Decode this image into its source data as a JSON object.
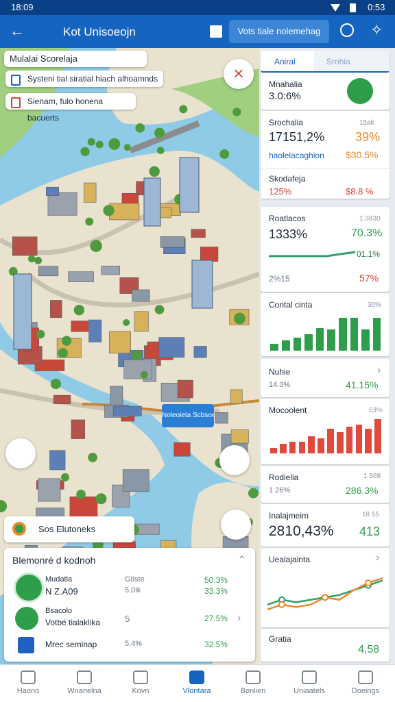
{
  "status": {
    "time": "18:09",
    "battery_time": "0:53"
  },
  "app_bar": {
    "title": "Kot Unisoeojn",
    "action": "Vots tiale nolemehag"
  },
  "map": {
    "legend_title": "Mulalai Scorelaja",
    "legend_items": [
      "Systeni tial siratial hiach alhoamnds",
      "Sienam, fulo honena bacuerts"
    ],
    "place_label": "Noleoieta Scbsoese",
    "search_chip": "Sos Elutoneks"
  },
  "summary": {
    "title": "Blemonré d kodnoh",
    "rows": [
      {
        "name": "Mudatia",
        "sub": "N Z.A09",
        "mid": "Gtiste",
        "mid_sub": "5.0ik",
        "value": "50.3%",
        "value_sub": "33.3%"
      },
      {
        "name": "Bsacolo",
        "sub": "Votbé tialaklika",
        "mid": "5",
        "value": "27.5%"
      },
      {
        "name": "Mrec seminap",
        "mid": "5.4%",
        "value": "32.5%"
      }
    ]
  },
  "panel": {
    "tabs": [
      "Aniral",
      "Srohia"
    ],
    "cards": [
      {
        "title": "Mnahalia",
        "value": "3.0:6%"
      },
      {
        "title": "Srochalia",
        "badge": "15ak",
        "value": "17151,2%",
        "change": "39%",
        "sub": "haolelacaghion",
        "sub_value": "$30.5%"
      },
      {
        "title": "Skodafeja",
        "value": "125%",
        "change": "$8.8 %"
      },
      {
        "title": "Roatlacos",
        "badge": "1 3830",
        "value": "1333%",
        "change": "70.3%",
        "line_end": "01.1%",
        "sub": "2%15",
        "sub_value": "57%"
      },
      {
        "title": "Contal cinta",
        "badge": "30%",
        "bars": [
          6,
          9,
          11,
          14,
          19,
          18,
          28,
          28,
          18,
          28
        ]
      },
      {
        "title": "Nuhie",
        "sub": "14.3%",
        "change": "41.15%"
      },
      {
        "title": "Mocoolent",
        "badge": "53%",
        "bars": [
          3,
          5,
          6,
          6,
          9,
          8,
          13,
          11,
          14,
          15,
          13,
          18
        ]
      },
      {
        "title": "Rodielia",
        "badge": "1 569",
        "sub": "1 26%",
        "change": "286.3%"
      },
      {
        "title": "Inalajmeim",
        "badge": "18 55",
        "value": "2810,43%",
        "change": "413"
      },
      {
        "title": "Uealajainta",
        "series": [
          {
            "color": "#2e9e6a",
            "values": [
              3,
              4,
              3.5,
              4,
              4.5,
              5,
              6,
              7,
              8
            ]
          },
          {
            "color": "#e8892b",
            "values": [
              2,
              3,
              2.5,
              3,
              4.5,
              4,
              6,
              7.5,
              8.5
            ]
          }
        ]
      },
      {
        "title": "Gratia",
        "change": "4,58"
      }
    ]
  },
  "nav": [
    "Haono",
    "Wnanelna",
    "Kovn",
    "Vlontara",
    "Bonlien",
    "Uniaatels",
    "Doeings"
  ],
  "nav_active": 3
}
